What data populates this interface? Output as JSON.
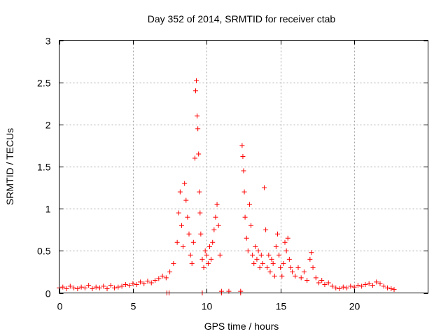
{
  "chart_data": {
    "type": "scatter",
    "title": "Day 352 of 2014, SRMTID for receiver ctab",
    "xlabel": "GPS time / hours",
    "ylabel": "SRMTID / TECUs",
    "xlim": [
      0,
      25
    ],
    "ylim": [
      0,
      3
    ],
    "xticks": [
      0,
      5,
      10,
      15,
      20
    ],
    "xtick_labels": [
      "0",
      "5",
      "10",
      "15",
      "20"
    ],
    "yticks": [
      0,
      0.5,
      1,
      1.5,
      2,
      2.5,
      3
    ],
    "ytick_labels": [
      "0",
      "0.5",
      "1",
      "1.5",
      "2",
      "2.5",
      "3"
    ],
    "grid": true,
    "marker": "plus",
    "series": [
      {
        "name": "SRMTID",
        "color": "#ff0000",
        "points": [
          [
            0.0,
            0.06
          ],
          [
            0.25,
            0.07
          ],
          [
            0.5,
            0.05
          ],
          [
            0.75,
            0.08
          ],
          [
            1.0,
            0.06
          ],
          [
            1.25,
            0.05
          ],
          [
            1.5,
            0.07
          ],
          [
            1.75,
            0.06
          ],
          [
            2.0,
            0.09
          ],
          [
            2.25,
            0.05
          ],
          [
            2.5,
            0.07
          ],
          [
            2.75,
            0.06
          ],
          [
            3.0,
            0.08
          ],
          [
            3.25,
            0.05
          ],
          [
            3.5,
            0.09
          ],
          [
            3.75,
            0.06
          ],
          [
            4.0,
            0.07
          ],
          [
            4.25,
            0.08
          ],
          [
            4.5,
            0.1
          ],
          [
            4.75,
            0.09
          ],
          [
            5.0,
            0.11
          ],
          [
            5.25,
            0.1
          ],
          [
            5.5,
            0.13
          ],
          [
            5.75,
            0.11
          ],
          [
            6.0,
            0.14
          ],
          [
            6.25,
            0.12
          ],
          [
            6.5,
            0.15
          ],
          [
            6.75,
            0.17
          ],
          [
            7.0,
            0.2
          ],
          [
            7.25,
            0.18
          ],
          [
            7.5,
            0.25
          ],
          [
            7.75,
            0.35
          ],
          [
            8.0,
            0.6
          ],
          [
            8.1,
            0.95
          ],
          [
            8.2,
            1.2
          ],
          [
            8.3,
            0.8
          ],
          [
            8.4,
            0.55
          ],
          [
            8.5,
            1.3
          ],
          [
            8.6,
            1.1
          ],
          [
            8.7,
            0.9
          ],
          [
            8.8,
            0.7
          ],
          [
            8.9,
            0.45
          ],
          [
            9.0,
            0.35
          ],
          [
            9.1,
            0.6
          ],
          [
            9.2,
            1.6
          ],
          [
            9.25,
            2.4
          ],
          [
            9.3,
            2.52
          ],
          [
            9.35,
            2.1
          ],
          [
            9.4,
            1.95
          ],
          [
            9.45,
            1.65
          ],
          [
            9.5,
            1.2
          ],
          [
            9.55,
            0.95
          ],
          [
            9.6,
            0.7
          ],
          [
            9.7,
            0.4
          ],
          [
            9.8,
            0.3
          ],
          [
            9.9,
            0.5
          ],
          [
            10.0,
            0.45
          ],
          [
            10.1,
            0.35
          ],
          [
            10.2,
            0.55
          ],
          [
            10.3,
            0.4
          ],
          [
            10.4,
            0.6
          ],
          [
            10.5,
            0.75
          ],
          [
            10.6,
            0.9
          ],
          [
            10.7,
            1.05
          ],
          [
            10.8,
            0.8
          ],
          [
            10.9,
            0.45
          ],
          [
            11.0,
            0.02
          ],
          [
            11.5,
            0.02
          ],
          [
            12.3,
            0.02
          ],
          [
            12.4,
            1.75
          ],
          [
            12.45,
            1.62
          ],
          [
            12.5,
            1.45
          ],
          [
            12.55,
            1.2
          ],
          [
            12.6,
            0.9
          ],
          [
            12.7,
            0.65
          ],
          [
            12.8,
            0.5
          ],
          [
            12.9,
            1.05
          ],
          [
            13.0,
            0.8
          ],
          [
            13.1,
            0.45
          ],
          [
            13.2,
            0.35
          ],
          [
            13.3,
            0.55
          ],
          [
            13.4,
            0.4
          ],
          [
            13.5,
            0.5
          ],
          [
            13.6,
            0.3
          ],
          [
            13.7,
            0.45
          ],
          [
            13.8,
            0.35
          ],
          [
            13.9,
            1.25
          ],
          [
            14.0,
            0.75
          ],
          [
            14.1,
            0.3
          ],
          [
            14.2,
            0.45
          ],
          [
            14.3,
            0.25
          ],
          [
            14.4,
            0.4
          ],
          [
            14.5,
            0.35
          ],
          [
            14.6,
            0.2
          ],
          [
            14.7,
            0.55
          ],
          [
            14.8,
            0.7
          ],
          [
            14.9,
            0.45
          ],
          [
            15.0,
            0.3
          ],
          [
            15.1,
            0.2
          ],
          [
            15.2,
            0.35
          ],
          [
            15.3,
            0.6
          ],
          [
            15.4,
            0.5
          ],
          [
            15.5,
            0.65
          ],
          [
            15.6,
            0.4
          ],
          [
            15.7,
            0.3
          ],
          [
            15.8,
            0.25
          ],
          [
            16.0,
            0.2
          ],
          [
            16.2,
            0.3
          ],
          [
            16.4,
            0.18
          ],
          [
            16.6,
            0.25
          ],
          [
            16.8,
            0.15
          ],
          [
            17.0,
            0.4
          ],
          [
            17.1,
            0.48
          ],
          [
            17.2,
            0.3
          ],
          [
            17.4,
            0.18
          ],
          [
            17.6,
            0.12
          ],
          [
            17.8,
            0.15
          ],
          [
            18.0,
            0.1
          ],
          [
            18.25,
            0.12
          ],
          [
            18.5,
            0.08
          ],
          [
            18.75,
            0.06
          ],
          [
            19.0,
            0.05
          ],
          [
            19.25,
            0.07
          ],
          [
            19.5,
            0.06
          ],
          [
            19.75,
            0.08
          ],
          [
            20.0,
            0.07
          ],
          [
            20.25,
            0.09
          ],
          [
            20.5,
            0.08
          ],
          [
            20.75,
            0.1
          ],
          [
            21.0,
            0.11
          ],
          [
            21.25,
            0.09
          ],
          [
            21.5,
            0.13
          ],
          [
            21.75,
            0.11
          ],
          [
            22.0,
            0.08
          ],
          [
            22.25,
            0.06
          ],
          [
            22.5,
            0.05
          ],
          [
            22.7,
            0.04
          ],
          [
            7.3,
            0.0
          ],
          [
            7.45,
            0.0
          ],
          [
            9.7,
            0.0
          ],
          [
            11.0,
            0.0
          ],
          [
            12.3,
            0.0
          ]
        ]
      }
    ]
  }
}
